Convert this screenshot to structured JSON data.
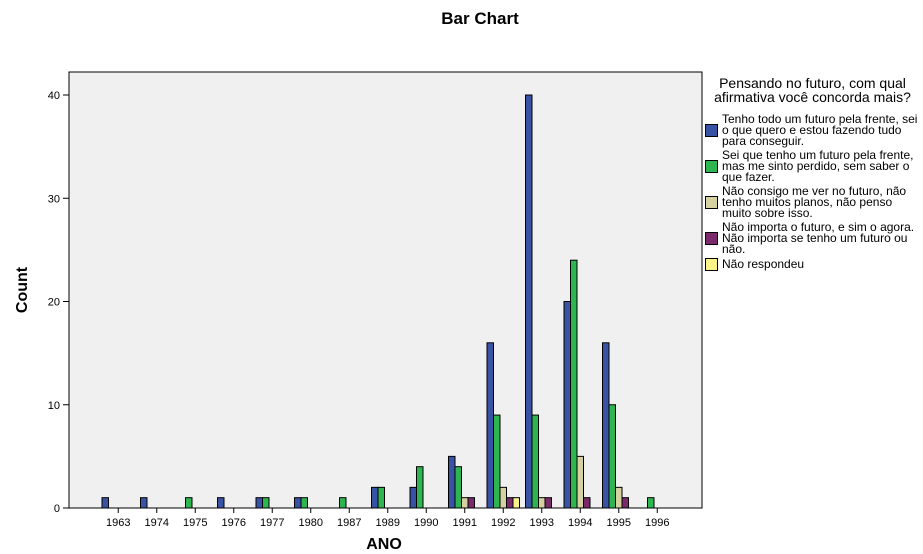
{
  "chart_data": {
    "type": "bar",
    "title": "Bar Chart",
    "xlabel": "ANO",
    "ylabel": "Count",
    "ylim": [
      0,
      44
    ],
    "yticks": [
      0,
      10,
      20,
      30,
      40
    ],
    "grid": false,
    "legend_position": "right",
    "legend_title": "Pensando no futuro, com qual afirmativa você concorda mais?",
    "categories": [
      "1963",
      "1974",
      "1975",
      "1976",
      "1977",
      "1980",
      "1987",
      "1989",
      "1990",
      "1991",
      "1992",
      "1993",
      "1994",
      "1995",
      "1996"
    ],
    "series": [
      {
        "name": "Tenho todo um futuro pela frente, sei o que quero e estou fazendo tudo para conseguir.",
        "color": "#3953a4",
        "values": [
          1,
          1,
          0,
          1,
          1,
          1,
          0,
          2,
          2,
          5,
          16,
          40,
          20,
          16,
          0
        ]
      },
      {
        "name": "Sei que tenho um futuro pela frente, mas me sinto perdido, sem saber o que fazer.",
        "color": "#2fb550",
        "values": [
          0,
          0,
          1,
          0,
          1,
          1,
          1,
          2,
          4,
          4,
          9,
          9,
          24,
          10,
          1
        ]
      },
      {
        "name": "Não consigo me ver no futuro, não tenho muitos planos, não penso muito sobre isso.",
        "color": "#d5d1a0",
        "values": [
          0,
          0,
          0,
          0,
          0,
          0,
          0,
          0,
          0,
          1,
          2,
          1,
          5,
          2,
          0
        ]
      },
      {
        "name": "Não importa o futuro, e sim o agora. Não importa se tenho um futuro ou não.",
        "color": "#7a2a6a",
        "values": [
          0,
          0,
          0,
          0,
          0,
          0,
          0,
          0,
          0,
          1,
          1,
          1,
          1,
          1,
          0
        ]
      },
      {
        "name": "Não respondeu",
        "color": "#fbf38a",
        "values": [
          0,
          0,
          0,
          0,
          0,
          0,
          0,
          0,
          0,
          0,
          1,
          0,
          0,
          0,
          0
        ]
      }
    ]
  },
  "colors": {
    "plot_background": "#f0f0f0",
    "bar_outline": "#000000"
  }
}
